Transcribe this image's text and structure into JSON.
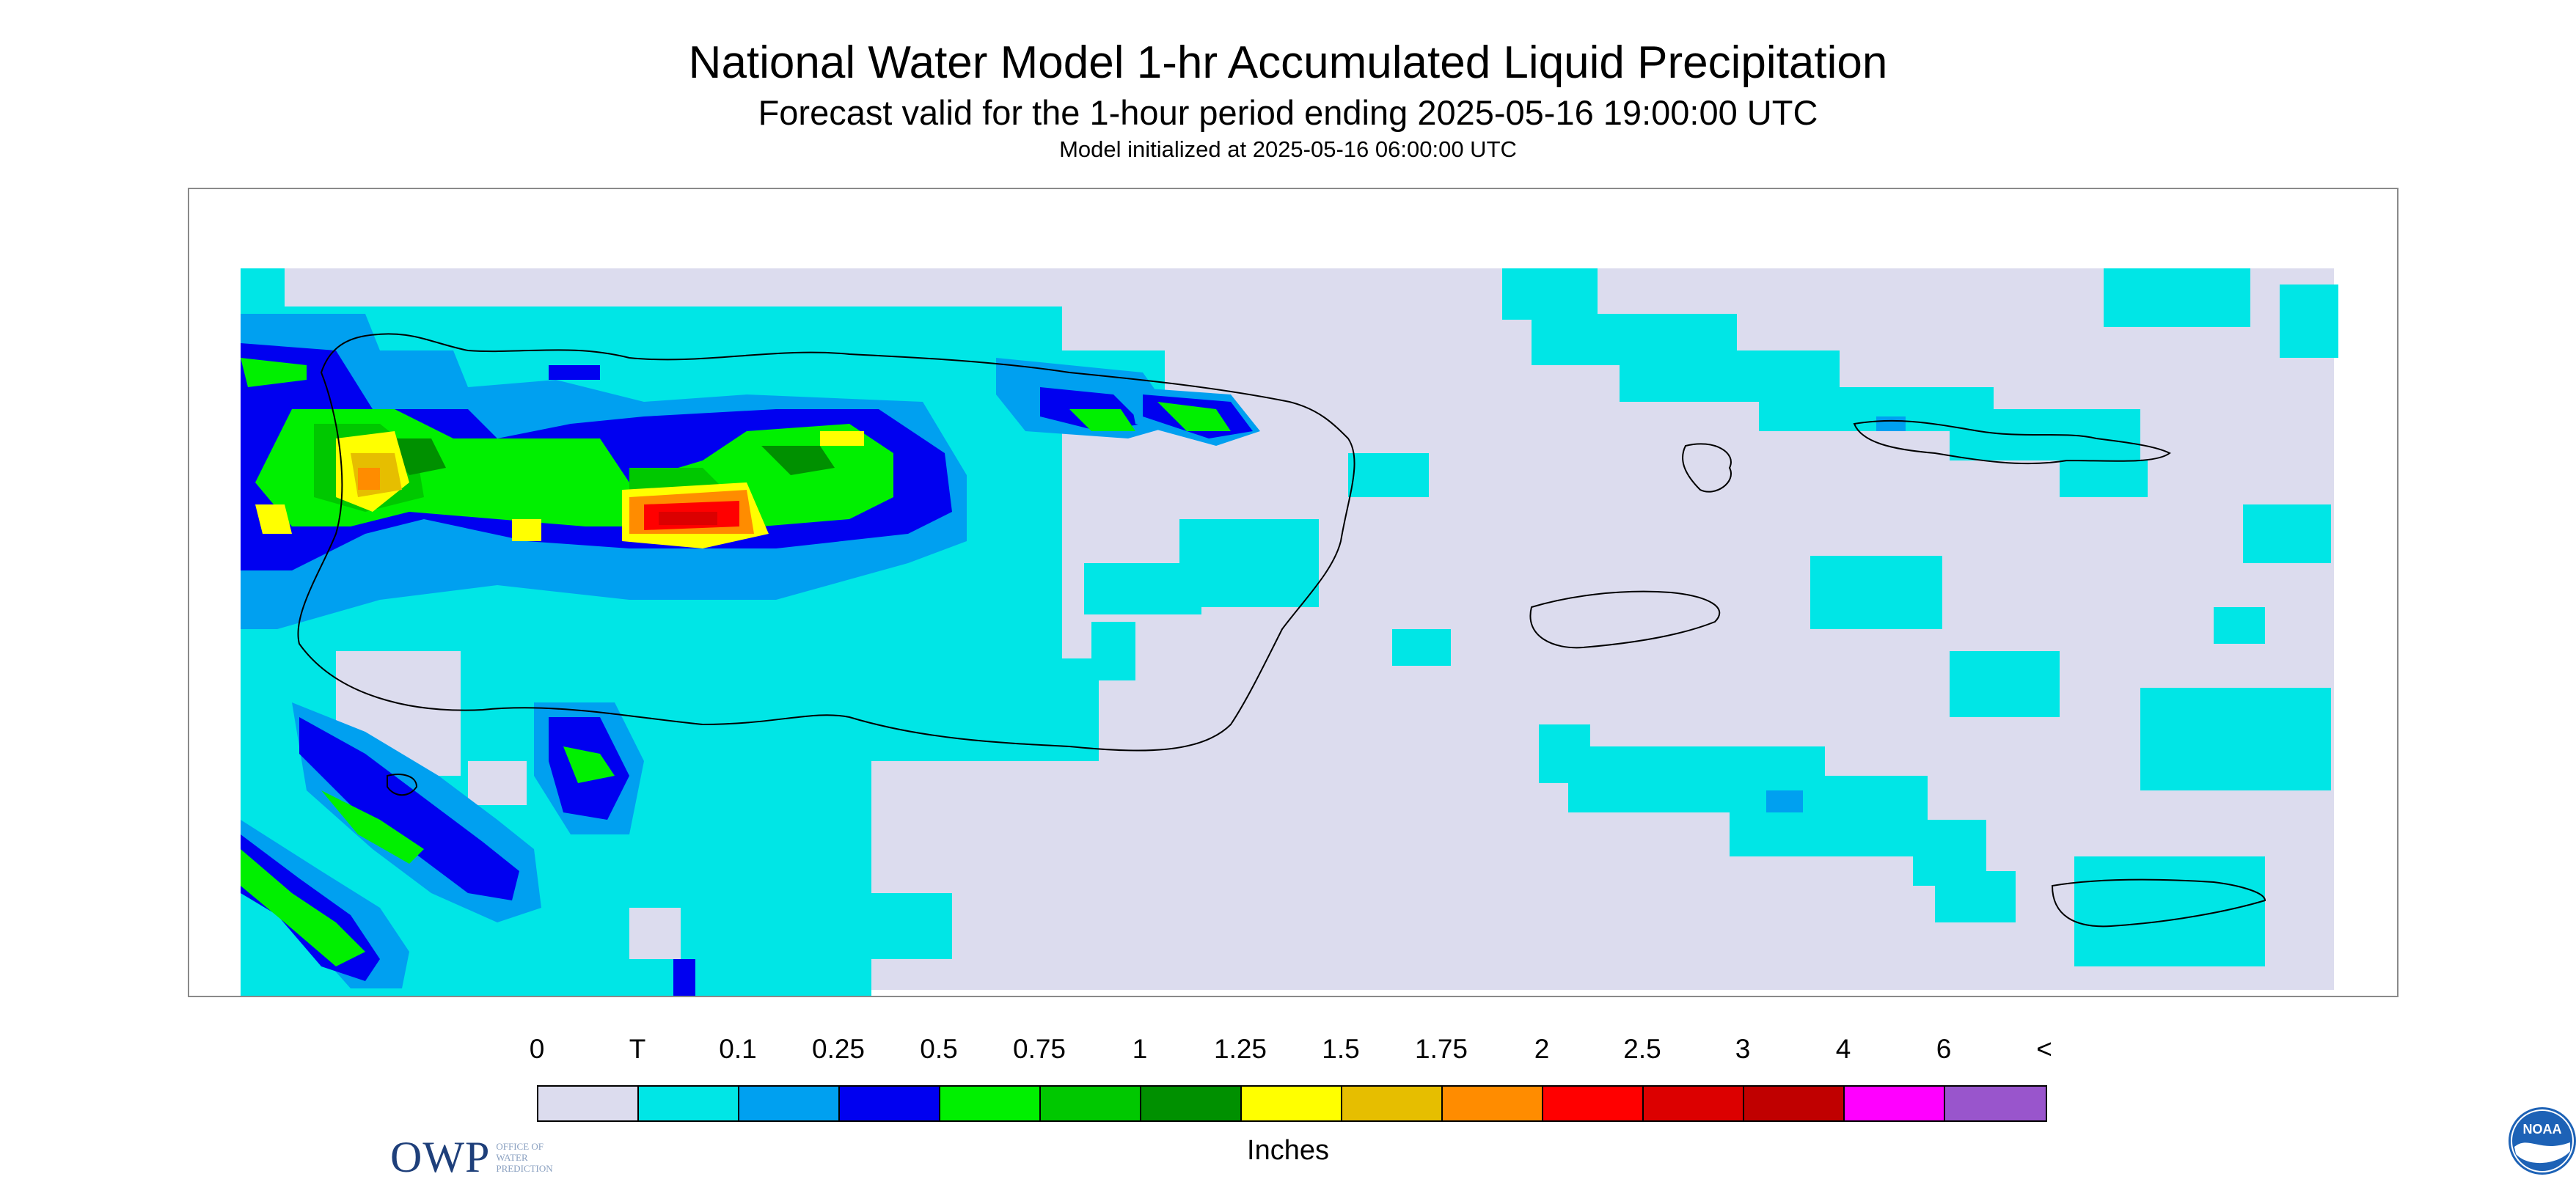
{
  "title": "National Water Model 1-hr Accumulated Liquid Precipitation",
  "subtitle": "Forecast valid for the 1-hour period ending 2025-05-16 19:00:00 UTC",
  "init": "Model initialized at 2025-05-16 06:00:00 UTC",
  "logos": {
    "owp": "OWP",
    "owp_sub": [
      "OFFICE OF",
      "WATER",
      "PREDICTION"
    ],
    "noaa": "NOAA"
  },
  "legend": {
    "units": "Inches",
    "labels": [
      "0",
      "T",
      "0.1",
      "0.25",
      "0.5",
      "0.75",
      "1",
      "1.25",
      "1.5",
      "1.75",
      "2",
      "2.5",
      "3",
      "4",
      "6",
      "<"
    ],
    "colors": [
      "#dcdcee",
      "#00e6e6",
      "#00a0f0",
      "#0000f0",
      "#00f000",
      "#00c800",
      "#009000",
      "#ffff00",
      "#e6be00",
      "#ff8c00",
      "#ff0000",
      "#dc0000",
      "#c00000",
      "#ff00ff",
      "#9955cc"
    ]
  },
  "palette": {
    "nodata": "#ffffff",
    "zero": "#dcdcee",
    "trace": "#00e6e6",
    "coast": "#000000"
  }
}
